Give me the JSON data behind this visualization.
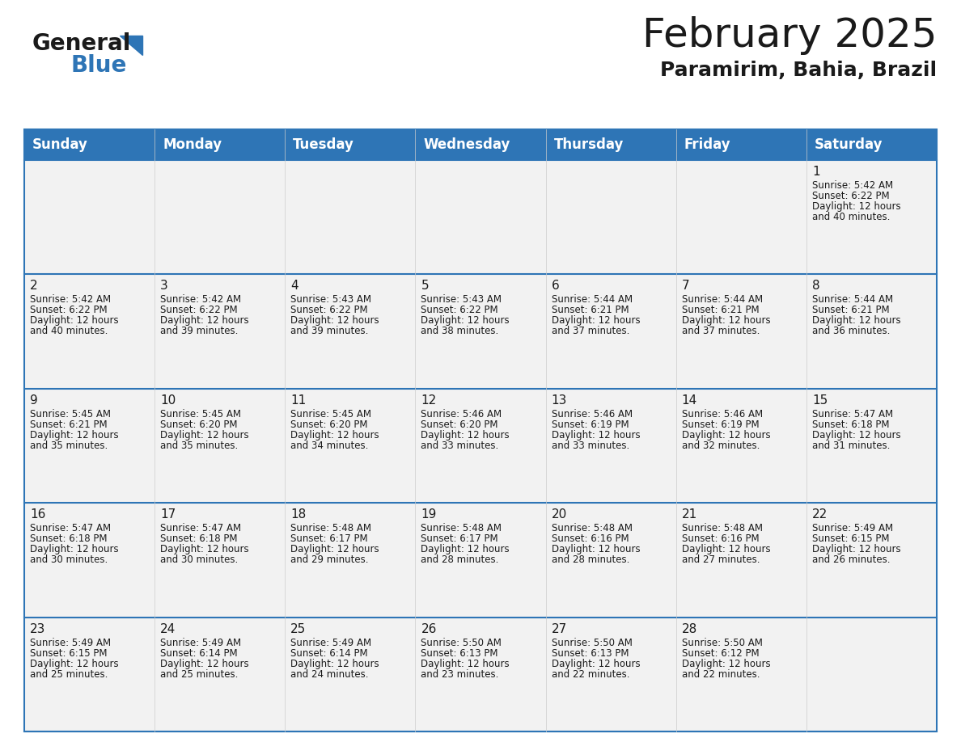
{
  "title": "February 2025",
  "subtitle": "Paramirim, Bahia, Brazil",
  "header_color": "#2E75B6",
  "header_text_color": "#FFFFFF",
  "cell_bg_color": "#F2F2F2",
  "cell_border_color": "#2E75B6",
  "day_headers": [
    "Sunday",
    "Monday",
    "Tuesday",
    "Wednesday",
    "Thursday",
    "Friday",
    "Saturday"
  ],
  "background_color": "#FFFFFF",
  "logo_text1": "General",
  "logo_text2": "Blue",
  "logo_color1": "#1a1a1a",
  "logo_color2": "#2E75B6",
  "days": [
    {
      "day": 1,
      "col": 6,
      "row": 0,
      "sunrise": "5:42 AM",
      "sunset": "6:22 PM",
      "daylight": "12 hours and 40 minutes"
    },
    {
      "day": 2,
      "col": 0,
      "row": 1,
      "sunrise": "5:42 AM",
      "sunset": "6:22 PM",
      "daylight": "12 hours and 40 minutes"
    },
    {
      "day": 3,
      "col": 1,
      "row": 1,
      "sunrise": "5:42 AM",
      "sunset": "6:22 PM",
      "daylight": "12 hours and 39 minutes"
    },
    {
      "day": 4,
      "col": 2,
      "row": 1,
      "sunrise": "5:43 AM",
      "sunset": "6:22 PM",
      "daylight": "12 hours and 39 minutes"
    },
    {
      "day": 5,
      "col": 3,
      "row": 1,
      "sunrise": "5:43 AM",
      "sunset": "6:22 PM",
      "daylight": "12 hours and 38 minutes"
    },
    {
      "day": 6,
      "col": 4,
      "row": 1,
      "sunrise": "5:44 AM",
      "sunset": "6:21 PM",
      "daylight": "12 hours and 37 minutes"
    },
    {
      "day": 7,
      "col": 5,
      "row": 1,
      "sunrise": "5:44 AM",
      "sunset": "6:21 PM",
      "daylight": "12 hours and 37 minutes"
    },
    {
      "day": 8,
      "col": 6,
      "row": 1,
      "sunrise": "5:44 AM",
      "sunset": "6:21 PM",
      "daylight": "12 hours and 36 minutes"
    },
    {
      "day": 9,
      "col": 0,
      "row": 2,
      "sunrise": "5:45 AM",
      "sunset": "6:21 PM",
      "daylight": "12 hours and 35 minutes"
    },
    {
      "day": 10,
      "col": 1,
      "row": 2,
      "sunrise": "5:45 AM",
      "sunset": "6:20 PM",
      "daylight": "12 hours and 35 minutes"
    },
    {
      "day": 11,
      "col": 2,
      "row": 2,
      "sunrise": "5:45 AM",
      "sunset": "6:20 PM",
      "daylight": "12 hours and 34 minutes"
    },
    {
      "day": 12,
      "col": 3,
      "row": 2,
      "sunrise": "5:46 AM",
      "sunset": "6:20 PM",
      "daylight": "12 hours and 33 minutes"
    },
    {
      "day": 13,
      "col": 4,
      "row": 2,
      "sunrise": "5:46 AM",
      "sunset": "6:19 PM",
      "daylight": "12 hours and 33 minutes"
    },
    {
      "day": 14,
      "col": 5,
      "row": 2,
      "sunrise": "5:46 AM",
      "sunset": "6:19 PM",
      "daylight": "12 hours and 32 minutes"
    },
    {
      "day": 15,
      "col": 6,
      "row": 2,
      "sunrise": "5:47 AM",
      "sunset": "6:18 PM",
      "daylight": "12 hours and 31 minutes"
    },
    {
      "day": 16,
      "col": 0,
      "row": 3,
      "sunrise": "5:47 AM",
      "sunset": "6:18 PM",
      "daylight": "12 hours and 30 minutes"
    },
    {
      "day": 17,
      "col": 1,
      "row": 3,
      "sunrise": "5:47 AM",
      "sunset": "6:18 PM",
      "daylight": "12 hours and 30 minutes"
    },
    {
      "day": 18,
      "col": 2,
      "row": 3,
      "sunrise": "5:48 AM",
      "sunset": "6:17 PM",
      "daylight": "12 hours and 29 minutes"
    },
    {
      "day": 19,
      "col": 3,
      "row": 3,
      "sunrise": "5:48 AM",
      "sunset": "6:17 PM",
      "daylight": "12 hours and 28 minutes"
    },
    {
      "day": 20,
      "col": 4,
      "row": 3,
      "sunrise": "5:48 AM",
      "sunset": "6:16 PM",
      "daylight": "12 hours and 28 minutes"
    },
    {
      "day": 21,
      "col": 5,
      "row": 3,
      "sunrise": "5:48 AM",
      "sunset": "6:16 PM",
      "daylight": "12 hours and 27 minutes"
    },
    {
      "day": 22,
      "col": 6,
      "row": 3,
      "sunrise": "5:49 AM",
      "sunset": "6:15 PM",
      "daylight": "12 hours and 26 minutes"
    },
    {
      "day": 23,
      "col": 0,
      "row": 4,
      "sunrise": "5:49 AM",
      "sunset": "6:15 PM",
      "daylight": "12 hours and 25 minutes"
    },
    {
      "day": 24,
      "col": 1,
      "row": 4,
      "sunrise": "5:49 AM",
      "sunset": "6:14 PM",
      "daylight": "12 hours and 25 minutes"
    },
    {
      "day": 25,
      "col": 2,
      "row": 4,
      "sunrise": "5:49 AM",
      "sunset": "6:14 PM",
      "daylight": "12 hours and 24 minutes"
    },
    {
      "day": 26,
      "col": 3,
      "row": 4,
      "sunrise": "5:50 AM",
      "sunset": "6:13 PM",
      "daylight": "12 hours and 23 minutes"
    },
    {
      "day": 27,
      "col": 4,
      "row": 4,
      "sunrise": "5:50 AM",
      "sunset": "6:13 PM",
      "daylight": "12 hours and 22 minutes"
    },
    {
      "day": 28,
      "col": 5,
      "row": 4,
      "sunrise": "5:50 AM",
      "sunset": "6:12 PM",
      "daylight": "12 hours and 22 minutes"
    }
  ]
}
